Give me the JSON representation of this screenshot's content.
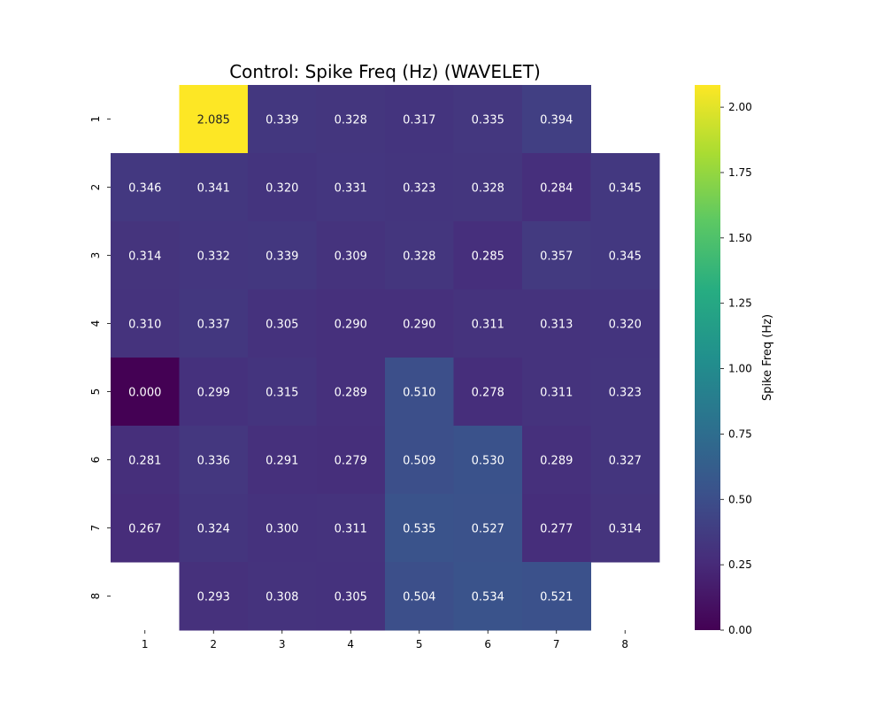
{
  "chart_data": {
    "type": "heatmap",
    "title": "Control: Spike Freq (Hz) (WAVELET)",
    "x_categories": [
      "1",
      "2",
      "3",
      "4",
      "5",
      "6",
      "7",
      "8"
    ],
    "y_categories": [
      "1",
      "2",
      "3",
      "4",
      "5",
      "6",
      "7",
      "8"
    ],
    "values": [
      [
        null,
        2.085,
        0.339,
        0.328,
        0.317,
        0.335,
        0.394,
        null
      ],
      [
        0.346,
        0.341,
        0.32,
        0.331,
        0.323,
        0.328,
        0.284,
        0.345
      ],
      [
        0.314,
        0.332,
        0.339,
        0.309,
        0.328,
        0.285,
        0.357,
        0.345
      ],
      [
        0.31,
        0.337,
        0.305,
        0.29,
        0.29,
        0.311,
        0.313,
        0.32
      ],
      [
        0.0,
        0.299,
        0.315,
        0.289,
        0.51,
        0.278,
        0.311,
        0.323
      ],
      [
        0.281,
        0.336,
        0.291,
        0.279,
        0.509,
        0.53,
        0.289,
        0.327
      ],
      [
        0.267,
        0.324,
        0.3,
        0.311,
        0.535,
        0.527,
        0.277,
        0.314
      ],
      [
        null,
        0.293,
        0.308,
        0.305,
        0.504,
        0.534,
        0.521,
        null
      ]
    ],
    "value_format_decimals": 3,
    "colormap": "viridis",
    "colorbar": {
      "label": "Spike Freq (Hz)",
      "range": [
        0,
        2.085
      ],
      "ticks": [
        "0.00",
        "0.25",
        "0.50",
        "0.75",
        "1.00",
        "1.25",
        "1.50",
        "1.75",
        "2.00"
      ]
    }
  }
}
